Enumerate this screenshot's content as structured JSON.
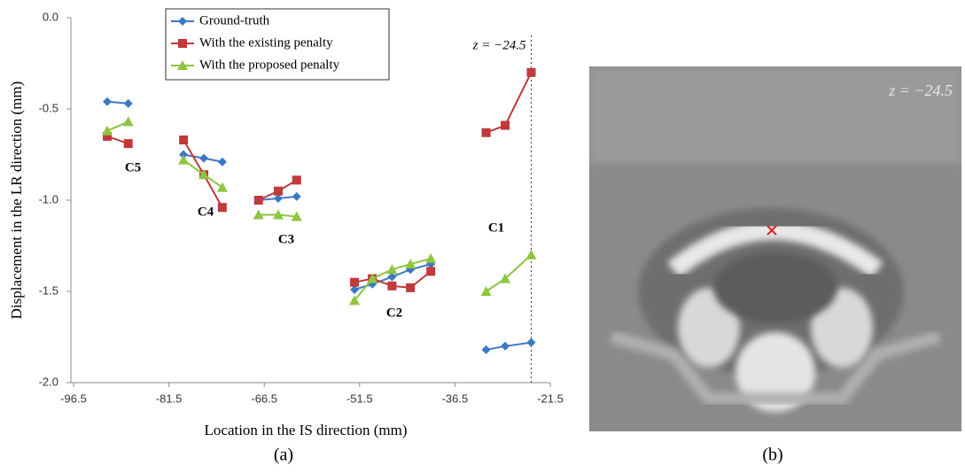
{
  "chart_data": {
    "type": "line",
    "caption": "(a)",
    "xlabel": "Location in the IS direction (mm)",
    "ylabel": "Displacement in the LR direction (mm)",
    "x": [
      -91.2,
      -87.9,
      null,
      -79.2,
      -76.0,
      -73.1,
      null,
      -67.4,
      -64.3,
      -61.4,
      null,
      -52.3,
      -49.5,
      -46.4,
      -43.5,
      -40.3,
      null,
      -31.6,
      -28.6,
      -24.5
    ],
    "series": [
      {
        "name": "Ground-truth",
        "color": "#3a78c3",
        "marker": "diamond",
        "values": [
          -0.46,
          -0.47,
          null,
          -0.75,
          -0.77,
          -0.79,
          null,
          -1.0,
          -0.99,
          -0.98,
          null,
          -1.49,
          -1.46,
          -1.42,
          -1.38,
          -1.35,
          null,
          -1.82,
          -1.8,
          -1.78
        ]
      },
      {
        "name": "With the existing penalty",
        "color": "#c0393b",
        "marker": "square",
        "values": [
          -0.65,
          -0.69,
          null,
          -0.67,
          -0.86,
          -1.04,
          null,
          -1.0,
          -0.95,
          -0.89,
          null,
          -1.45,
          -1.43,
          -1.47,
          -1.48,
          -1.39,
          null,
          -0.63,
          -0.59,
          -0.3
        ]
      },
      {
        "name": "With the proposed penalty",
        "color": "#8dc63f",
        "marker": "triangle",
        "values": [
          -0.62,
          -0.57,
          null,
          -0.78,
          -0.86,
          -0.93,
          null,
          -1.08,
          -1.08,
          -1.09,
          null,
          -1.55,
          -1.43,
          -1.38,
          -1.35,
          -1.32,
          null,
          -1.5,
          -1.43,
          -1.3
        ]
      }
    ],
    "xlim": [
      -96.5,
      -21.5
    ],
    "xticks": [
      -96.5,
      -81.5,
      -66.5,
      -51.5,
      -36.5,
      -21.5
    ],
    "ylim": [
      -2.0,
      0.0
    ],
    "yticks": [
      {
        "value": 0,
        "label": "0.0"
      },
      -0.5,
      {
        "value": -1,
        "label": "-1.0"
      },
      -1.5,
      {
        "value": -2,
        "label": "-2.0"
      }
    ],
    "legend": "upper center",
    "vline": {
      "value": -24.5,
      "label": "z = −24.5"
    },
    "annotations": [
      "C5",
      "C4",
      "C3",
      "C2",
      "C1"
    ]
  },
  "panel_b": {
    "caption": "(b)",
    "label": "z = −24.5"
  }
}
